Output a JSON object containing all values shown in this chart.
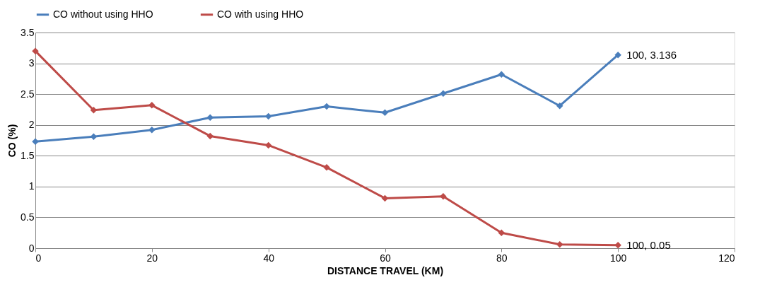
{
  "chart_data": {
    "type": "line",
    "xlabel": "DISTANCE TRAVEL (KM)",
    "ylabel": "CO (%)",
    "x": [
      0,
      10,
      20,
      30,
      40,
      50,
      60,
      70,
      80,
      90,
      100
    ],
    "series": [
      {
        "name": "CO without using HHO",
        "color": "#4a7ebb",
        "values": [
          1.73,
          1.81,
          1.92,
          2.12,
          2.14,
          2.3,
          2.2,
          2.51,
          2.82,
          2.31,
          3.136
        ]
      },
      {
        "name": "CO with using HHO",
        "color": "#be4b48",
        "values": [
          3.2,
          2.24,
          2.32,
          1.82,
          1.67,
          1.31,
          0.81,
          0.84,
          0.25,
          0.06,
          0.05
        ]
      }
    ],
    "annotations": [
      {
        "text": "100, 3.136",
        "x": 100,
        "y": 3.136
      },
      {
        "text": "100, 0.05",
        "x": 100,
        "y": 0.05
      }
    ],
    "xlim": [
      0,
      120
    ],
    "xticks": [
      0,
      20,
      40,
      60,
      80,
      100,
      120
    ],
    "ylim": [
      0,
      3.5
    ],
    "yticks": [
      0,
      0.5,
      1,
      1.5,
      2,
      2.5,
      3,
      3.5
    ],
    "grid": "y",
    "legend": "top",
    "marker": "diamond",
    "line_style": "solid"
  }
}
